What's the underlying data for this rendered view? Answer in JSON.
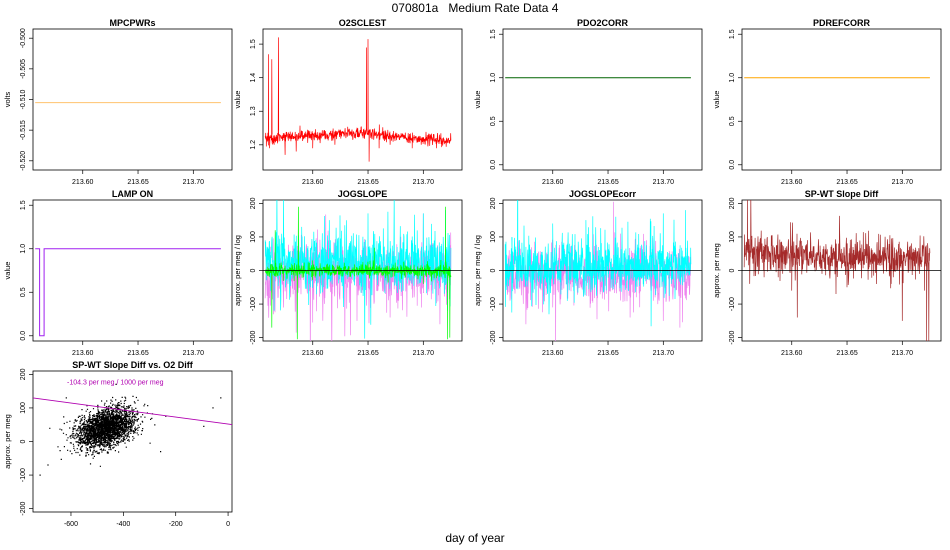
{
  "page": {
    "title": "070801a   Medium Rate Data 4",
    "xlabel": "day of year"
  },
  "chart_data": [
    {
      "id": "mpcpwrs",
      "type": "line",
      "title": "MPCPWRs",
      "ylabel": "volts",
      "xlim": [
        213.555,
        213.735
      ],
      "ylim": [
        -0.5215,
        -0.4985
      ],
      "xticks": [
        213.6,
        213.65,
        213.7
      ],
      "xtick_labels": [
        "213.60",
        "213.65",
        "213.70"
      ],
      "yticks": [
        -0.52,
        -0.515,
        -0.51,
        -0.505,
        -0.5
      ],
      "ytick_labels": [
        "-0.520",
        "-0.515",
        "-0.510",
        "-0.505",
        "-0.500"
      ],
      "series": [
        {
          "color": "#ffc26e",
          "mode": "constant",
          "x": [
            213.557,
            213.725
          ],
          "value": -0.5105
        }
      ]
    },
    {
      "id": "o2sclest",
      "type": "line",
      "title": "O2SCLEST",
      "ylabel": "value",
      "xlim": [
        213.555,
        213.735
      ],
      "ylim": [
        1.125,
        1.545
      ],
      "xticks": [
        213.6,
        213.65,
        213.7
      ],
      "xtick_labels": [
        "213.60",
        "213.65",
        "213.70"
      ],
      "yticks": [
        1.2,
        1.3,
        1.4,
        1.5
      ],
      "ytick_labels": [
        "1.2",
        "1.3",
        "1.4",
        "1.5"
      ],
      "series": [
        {
          "color": "#ff0000",
          "mode": "noise",
          "x": [
            213.557,
            213.725
          ],
          "base": [
            1.22,
            1.235,
            1.21
          ],
          "noise": 0.008,
          "spikes": [
            [
              213.558,
              1.195
            ],
            [
              213.56,
              1.47
            ],
            [
              213.561,
              1.19
            ],
            [
              213.563,
              1.455
            ],
            [
              213.565,
              1.2
            ],
            [
              213.569,
              1.52
            ],
            [
              213.575,
              1.17
            ],
            [
              213.585,
              1.18
            ],
            [
              213.6,
              1.19
            ],
            [
              213.62,
              1.2
            ],
            [
              213.6485,
              1.49
            ],
            [
              213.65,
              1.515
            ],
            [
              213.651,
              1.15
            ],
            [
              213.66,
              1.19
            ],
            [
              213.67,
              1.2
            ],
            [
              213.69,
              1.19
            ],
            [
              213.712,
              1.19
            ]
          ]
        }
      ]
    },
    {
      "id": "pdo2corr",
      "type": "line",
      "title": "PDO2CORR",
      "ylabel": "value",
      "xlim": [
        213.555,
        213.735
      ],
      "ylim": [
        -0.06,
        1.56
      ],
      "xticks": [
        213.6,
        213.65,
        213.7
      ],
      "xtick_labels": [
        "213.60",
        "213.65",
        "213.70"
      ],
      "yticks": [
        0.0,
        0.5,
        1.0,
        1.5
      ],
      "ytick_labels": [
        "0.0",
        "0.5",
        "1.0",
        "1.5"
      ],
      "series": [
        {
          "color": "#006400",
          "mode": "constant",
          "x": [
            213.557,
            213.725
          ],
          "value": 1.0
        }
      ]
    },
    {
      "id": "pdrefcorr",
      "type": "line",
      "title": "PDREFCORR",
      "ylabel": "value",
      "xlim": [
        213.555,
        213.735
      ],
      "ylim": [
        -0.06,
        1.56
      ],
      "xticks": [
        213.6,
        213.65,
        213.7
      ],
      "xtick_labels": [
        "213.60",
        "213.65",
        "213.70"
      ],
      "yticks": [
        0.0,
        0.5,
        1.0,
        1.5
      ],
      "ytick_labels": [
        "0.0",
        "0.5",
        "1.0",
        "1.5"
      ],
      "series": [
        {
          "color": "#ffa500",
          "mode": "constant",
          "x": [
            213.557,
            213.725
          ],
          "value": 1.0
        }
      ]
    },
    {
      "id": "lamp-on",
      "type": "line",
      "title": "LAMP ON",
      "ylabel": "value",
      "xlim": [
        213.555,
        213.735
      ],
      "ylim": [
        -0.06,
        1.56
      ],
      "xticks": [
        213.6,
        213.65,
        213.7
      ],
      "xtick_labels": [
        "213.60",
        "213.65",
        "213.70"
      ],
      "yticks": [
        0.0,
        0.5,
        1.0,
        1.5
      ],
      "ytick_labels": [
        "0.0",
        "0.5",
        "1.0",
        "1.5"
      ],
      "series": [
        {
          "color": "#a020f0",
          "mode": "points",
          "x": [
            213.557,
            213.561,
            213.561,
            213.565,
            213.565,
            213.725
          ],
          "y": [
            1.0,
            1.0,
            0.0,
            0.0,
            1.0,
            1.0
          ]
        }
      ]
    },
    {
      "id": "jogslope",
      "type": "line",
      "title": "JOGSLOPE",
      "ylabel": "approx. per meg / log",
      "xlim": [
        213.555,
        213.735
      ],
      "ylim": [
        -210,
        210
      ],
      "xticks": [
        213.6,
        213.65,
        213.7
      ],
      "xtick_labels": [
        "213.60",
        "213.65",
        "213.70"
      ],
      "yticks": [
        -200,
        -100,
        0,
        100,
        200
      ],
      "ytick_labels": [
        "-200",
        "-100",
        "0",
        "100",
        "200"
      ],
      "series": [
        {
          "color": "#ee82ee",
          "mode": "noise",
          "x": [
            213.557,
            213.725
          ],
          "base": [
            -10
          ],
          "noise": 45,
          "seed": 3,
          "spikes": [
            [
              213.585,
              -185
            ],
            [
              213.6,
              -120
            ],
            [
              213.64,
              -150
            ],
            [
              213.67,
              -140
            ],
            [
              213.7,
              170
            ],
            [
              213.715,
              -160
            ]
          ]
        },
        {
          "color": "#00ffff",
          "mode": "noise",
          "x": [
            213.557,
            213.725
          ],
          "base": [
            25
          ],
          "noise": 45,
          "seed": 7,
          "spikes": [
            [
              213.565,
              -120
            ],
            [
              213.59,
              130
            ],
            [
              213.615,
              150
            ],
            [
              213.65,
              170
            ],
            [
              213.668,
              175
            ],
            [
              213.7,
              170
            ],
            [
              213.72,
              180
            ],
            [
              213.722,
              -120
            ]
          ]
        },
        {
          "color": "#00ff00",
          "mode": "noise",
          "x": [
            213.557,
            213.725
          ],
          "base": [
            0
          ],
          "noise": 10,
          "seed": 11,
          "spikes": [
            [
              213.563,
              -170
            ],
            [
              213.566,
              120
            ],
            [
              213.586,
              -205
            ],
            [
              213.587,
              190
            ],
            [
              213.6,
              30
            ],
            [
              213.7,
              -40
            ],
            [
              213.72,
              190
            ],
            [
              213.722,
              -205
            ],
            [
              213.724,
              -200
            ]
          ]
        }
      ],
      "hline": 0
    },
    {
      "id": "jogslopecorr",
      "type": "line",
      "title": "JOGSLOPEcorr",
      "ylabel": "approx. per meg / log",
      "xlim": [
        213.555,
        213.735
      ],
      "ylim": [
        -210,
        210
      ],
      "xticks": [
        213.6,
        213.65,
        213.7
      ],
      "xtick_labels": [
        "213.60",
        "213.65",
        "213.70"
      ],
      "yticks": [
        -200,
        -100,
        0,
        100,
        200
      ],
      "ytick_labels": [
        "-200",
        "-100",
        "0",
        "100",
        "200"
      ],
      "series": [
        {
          "color": "#ee82ee",
          "mode": "noise",
          "x": [
            213.557,
            213.725
          ],
          "base": [
            -15
          ],
          "noise": 45,
          "seed": 5,
          "spikes": [
            [
              213.6,
              -110
            ],
            [
              213.64,
              -145
            ],
            [
              213.655,
              205
            ],
            [
              213.67,
              -140
            ],
            [
              213.7,
              -150
            ],
            [
              213.715,
              -170
            ]
          ]
        },
        {
          "color": "#00ffff",
          "mode": "noise",
          "x": [
            213.557,
            213.725
          ],
          "base": [
            15
          ],
          "noise": 45,
          "seed": 9,
          "spikes": [
            [
              213.563,
              -125
            ],
            [
              213.6,
              140
            ],
            [
              213.63,
              150
            ],
            [
              213.657,
              160
            ],
            [
              213.668,
              145
            ],
            [
              213.7,
              170
            ],
            [
              213.72,
              180
            ]
          ]
        }
      ],
      "hline": 0
    },
    {
      "id": "sp-wt-slope-diff",
      "type": "line",
      "title": "SP-WT Slope Diff",
      "ylabel": "approx. per meg",
      "xlim": [
        213.555,
        213.735
      ],
      "ylim": [
        -210,
        210
      ],
      "xticks": [
        213.6,
        213.65,
        213.7
      ],
      "xtick_labels": [
        "213.60",
        "213.65",
        "213.70"
      ],
      "yticks": [
        -200,
        -100,
        0,
        100,
        200
      ],
      "ytick_labels": [
        "-200",
        "-100",
        "0",
        "100",
        "200"
      ],
      "series": [
        {
          "color": "#a52a2a",
          "mode": "noise",
          "x": [
            213.557,
            213.725
          ],
          "base": [
            55,
            45,
            35
          ],
          "noise": 28,
          "seed": 13,
          "spikes": [
            [
              213.559,
              30
            ],
            [
              213.56,
              230
            ],
            [
              213.562,
              -40
            ],
            [
              213.563,
              230
            ],
            [
              213.566,
              0
            ],
            [
              213.6,
              -60
            ],
            [
              213.605,
              -140
            ],
            [
              213.64,
              -70
            ],
            [
              213.65,
              -50
            ],
            [
              213.69,
              -40
            ],
            [
              213.7,
              -150
            ],
            [
              213.72,
              -60
            ],
            [
              213.722,
              -210
            ],
            [
              213.724,
              -210
            ]
          ]
        }
      ],
      "hline": 0
    },
    {
      "id": "sp-wt-vs-o2",
      "type": "scatter",
      "title": "SP-WT Slope Diff vs. O2 Diff",
      "ylabel": "approx. per meg",
      "xlim": [
        -745,
        15
      ],
      "ylim": [
        -210,
        210
      ],
      "xticks": [
        -600,
        -400,
        -200,
        0
      ],
      "xtick_labels": [
        "-600",
        "-400",
        "-200",
        "0"
      ],
      "yticks": [
        -200,
        -100,
        0,
        100,
        200
      ],
      "ytick_labels": [
        "-200",
        "-100",
        "0",
        "100",
        "200"
      ],
      "cloud": {
        "cx": -470,
        "cy": 40,
        "sx": 55,
        "sy": 28,
        "n": 2600,
        "rot": 0.18,
        "color": "#000000"
      },
      "outliers": [
        [
          -720,
          -100
        ],
        [
          -690,
          -70
        ],
        [
          -560,
          95
        ],
        [
          -430,
          170
        ],
        [
          -300,
          -5
        ],
        [
          -260,
          -30
        ],
        [
          -95,
          45
        ],
        [
          -30,
          130
        ],
        [
          -60,
          100
        ],
        [
          -240,
          75
        ],
        [
          -330,
          60
        ],
        [
          -620,
          130
        ]
      ],
      "fit": {
        "color": "#b000b0",
        "slope": -0.1043,
        "intercept": 52,
        "label": "-104.3 per meg / 1000 per meg",
        "label_at": [
          -615,
          170
        ]
      }
    }
  ]
}
